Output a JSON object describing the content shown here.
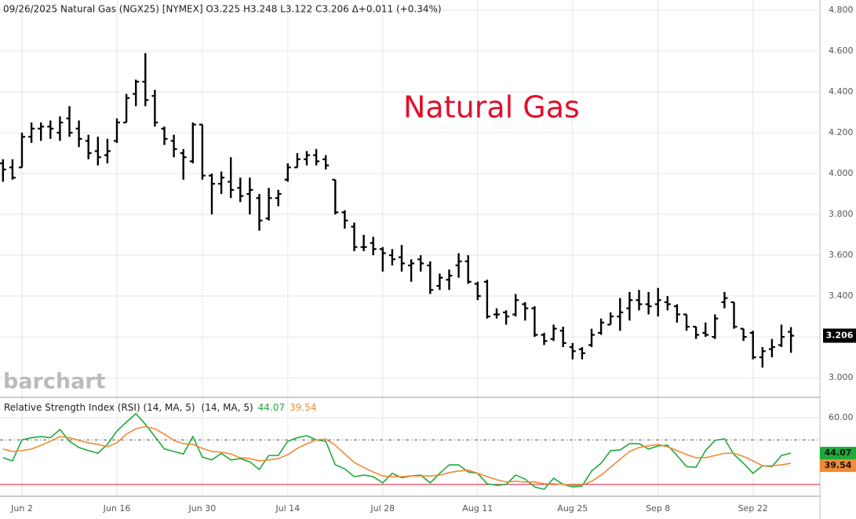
{
  "chart_data": [
    {
      "type": "ohlc",
      "title": "09/26/2025 Natural Gas (NGX25) [NYMEX] O3.225 H3.248 L3.122 C3.206 Δ+0.011 (+0.34%)",
      "annotation": "Natural Gas",
      "watermark": "barchart",
      "color": "#000000",
      "categories": [
        null,
        null,
        "Jun 2",
        null,
        null,
        null,
        null,
        null,
        null,
        null,
        null,
        null,
        "Jun 16",
        null,
        null,
        null,
        null,
        null,
        null,
        null,
        null,
        "Jun 30",
        null,
        null,
        null,
        null,
        null,
        null,
        null,
        null,
        "Jul 14",
        null,
        null,
        null,
        null,
        null,
        null,
        null,
        null,
        null,
        "Jul 28",
        null,
        null,
        null,
        null,
        null,
        null,
        null,
        null,
        null,
        "Aug 11",
        null,
        null,
        null,
        null,
        null,
        null,
        null,
        null,
        null,
        "Aug 25",
        null,
        null,
        null,
        null,
        null,
        null,
        null,
        null,
        "Sep 8",
        null,
        null,
        null,
        null,
        null,
        null,
        null,
        null,
        null,
        "Sep 22",
        null,
        null,
        null,
        null
      ],
      "open": [
        4.05,
        4.03,
        4.03,
        4.18,
        4.22,
        4.23,
        4.2,
        4.27,
        4.22,
        4.16,
        4.11,
        4.09,
        4.16,
        4.25,
        4.39,
        4.45,
        4.38,
        4.22,
        4.16,
        4.1,
        4.06,
        4.24,
        3.99,
        3.95,
        3.96,
        3.93,
        3.9,
        3.88,
        3.78,
        3.88,
        3.97,
        4.03,
        4.07,
        4.09,
        4.07,
        3.97,
        3.81,
        3.74,
        3.64,
        3.66,
        3.63,
        3.6,
        3.59,
        3.55,
        3.58,
        3.55,
        3.45,
        3.48,
        3.55,
        3.57,
        3.46,
        3.47,
        3.31,
        3.32,
        3.31,
        3.36,
        3.34,
        3.21,
        3.19,
        3.23,
        3.15,
        3.14,
        3.16,
        3.22,
        3.26,
        3.3,
        3.34,
        3.38,
        3.36,
        3.36,
        3.37,
        3.35,
        3.31,
        3.25,
        3.22,
        3.2,
        3.37,
        3.37,
        3.24,
        3.22,
        3.1,
        3.14,
        3.16,
        3.225
      ],
      "high": [
        4.07,
        4.07,
        4.2,
        4.25,
        4.25,
        4.26,
        4.28,
        4.33,
        4.26,
        4.19,
        4.18,
        4.17,
        4.27,
        4.39,
        4.46,
        4.59,
        4.41,
        4.23,
        4.19,
        4.12,
        4.25,
        4.24,
        4.0,
        4.01,
        4.08,
        3.98,
        3.98,
        3.9,
        3.93,
        3.92,
        4.05,
        4.1,
        4.11,
        4.12,
        4.09,
        3.97,
        3.82,
        3.76,
        3.7,
        3.69,
        3.64,
        3.63,
        3.65,
        3.58,
        3.6,
        3.57,
        3.51,
        3.53,
        3.61,
        3.6,
        3.47,
        3.48,
        3.34,
        3.33,
        3.41,
        3.37,
        3.35,
        3.22,
        3.26,
        3.25,
        3.17,
        3.15,
        3.24,
        3.29,
        3.32,
        3.39,
        3.42,
        3.43,
        3.42,
        3.44,
        3.4,
        3.36,
        3.31,
        3.25,
        3.27,
        3.31,
        3.42,
        3.37,
        3.24,
        3.23,
        3.15,
        3.19,
        3.26,
        3.248
      ],
      "low": [
        3.96,
        3.97,
        4.03,
        4.15,
        4.16,
        4.17,
        4.16,
        4.18,
        4.13,
        4.07,
        4.04,
        4.05,
        4.15,
        4.25,
        4.33,
        4.33,
        4.23,
        4.14,
        4.08,
        3.97,
        4.05,
        3.97,
        3.8,
        3.9,
        3.88,
        3.86,
        3.8,
        3.72,
        3.77,
        3.84,
        3.96,
        4.03,
        4.04,
        4.04,
        4.02,
        3.8,
        3.73,
        3.62,
        3.62,
        3.6,
        3.52,
        3.55,
        3.52,
        3.47,
        3.52,
        3.41,
        3.43,
        3.43,
        3.49,
        3.46,
        3.38,
        3.29,
        3.29,
        3.26,
        3.3,
        3.28,
        3.2,
        3.16,
        3.18,
        3.15,
        3.09,
        3.09,
        3.15,
        3.21,
        3.26,
        3.23,
        3.28,
        3.33,
        3.31,
        3.3,
        3.33,
        3.27,
        3.23,
        3.19,
        3.2,
        3.19,
        3.34,
        3.24,
        3.18,
        3.09,
        3.05,
        3.1,
        3.15,
        3.122
      ],
      "close": [
        4.02,
        3.98,
        4.18,
        4.22,
        4.23,
        4.22,
        4.25,
        4.2,
        4.17,
        4.1,
        4.08,
        4.11,
        4.25,
        4.37,
        4.45,
        4.36,
        4.25,
        4.17,
        4.12,
        4.08,
        4.24,
        3.99,
        3.95,
        3.98,
        3.92,
        3.89,
        3.92,
        3.77,
        3.88,
        3.9,
        4.03,
        4.07,
        4.09,
        4.06,
        4.04,
        3.81,
        3.77,
        3.64,
        3.64,
        3.63,
        3.61,
        3.58,
        3.56,
        3.56,
        3.56,
        3.43,
        3.49,
        3.5,
        3.57,
        3.47,
        3.4,
        3.3,
        3.31,
        3.3,
        3.38,
        3.34,
        3.21,
        3.18,
        3.24,
        3.17,
        3.13,
        3.12,
        3.21,
        3.27,
        3.3,
        3.32,
        3.38,
        3.36,
        3.35,
        3.38,
        3.36,
        3.31,
        3.25,
        3.21,
        3.21,
        3.29,
        3.39,
        3.25,
        3.2,
        3.1,
        3.13,
        3.15,
        3.2,
        3.206
      ],
      "ylim": [
        2.908,
        4.85
      ],
      "yticks": [
        {
          "value": 3.0,
          "label": "3.000"
        },
        {
          "value": 3.2,
          "label": "3.200"
        },
        {
          "value": 3.4,
          "label": "3.400"
        },
        {
          "value": 3.6,
          "label": "3.600"
        },
        {
          "value": 3.8,
          "label": "3.800"
        },
        {
          "value": 4.0,
          "label": "4.000"
        },
        {
          "value": 4.2,
          "label": "4.200"
        },
        {
          "value": 4.4,
          "label": "4.400"
        },
        {
          "value": 4.6,
          "label": "4.600"
        },
        {
          "value": 4.8,
          "label": "4.800"
        }
      ],
      "grid": true
    },
    {
      "type": "line",
      "series": [
        {
          "name": "Relative Strength Index (RSI) (14, MA, 5)",
          "color": "#1faa3a",
          "values": [
            42,
            40.6,
            50,
            51,
            51.5,
            51,
            54.7,
            49.4,
            46.6,
            45.2,
            44,
            48,
            54,
            58,
            61.8,
            57,
            51.5,
            46,
            44.8,
            43.7,
            51.5,
            42.3,
            41,
            44,
            41,
            41.6,
            40.2,
            36.7,
            43,
            43,
            49.4,
            51,
            51.9,
            50,
            49.4,
            38.8,
            37,
            33.5,
            34.2,
            33.5,
            30.7,
            35,
            33,
            33.8,
            34.2,
            30.7,
            35,
            38.8,
            38.8,
            35.6,
            35,
            30.3,
            29.6,
            30,
            34.2,
            32.4,
            28.9,
            27.8,
            32.8,
            30,
            28.9,
            29.3,
            36,
            39.5,
            45.2,
            45.5,
            48.3,
            48.3,
            45.9,
            47.3,
            47.6,
            43,
            38,
            37.7,
            45.2,
            49.8,
            50.5,
            43.4,
            39.5,
            35,
            38.4,
            38,
            43,
            44.07
          ]
        },
        {
          "name": "(14, MA, 5)",
          "color": "#f08a33",
          "values": [
            45.9,
            44.8,
            45.2,
            45.9,
            47.6,
            49.4,
            51.5,
            51,
            49.8,
            48.7,
            48,
            46.9,
            48.7,
            52.6,
            55,
            56,
            55,
            52.6,
            49.8,
            48.3,
            48,
            46.2,
            44.8,
            44.5,
            43.7,
            42,
            41.6,
            40.6,
            41,
            41.6,
            43.4,
            46.2,
            48.3,
            50,
            50.4,
            47.6,
            43.7,
            39.9,
            37.6,
            35.6,
            33.8,
            33.5,
            33.5,
            33.8,
            33.8,
            33.8,
            34.2,
            35.3,
            36,
            36.4,
            35,
            33.5,
            32.1,
            31.1,
            31.4,
            31.1,
            31.1,
            30.3,
            30.3,
            30,
            29.6,
            29.6,
            31.4,
            34.2,
            37.7,
            41.3,
            44.8,
            46.6,
            47.3,
            48,
            46.9,
            45.2,
            43.4,
            42,
            42,
            43,
            44,
            44,
            42.6,
            40.6,
            38.4,
            38.4,
            38.8,
            39.54
          ]
        }
      ],
      "ylim": [
        24.7,
        68.8
      ],
      "yticks": [
        {
          "value": 60,
          "label": "60.00"
        }
      ],
      "reference_lines": [
        50,
        30
      ],
      "grid": true
    }
  ]
}
